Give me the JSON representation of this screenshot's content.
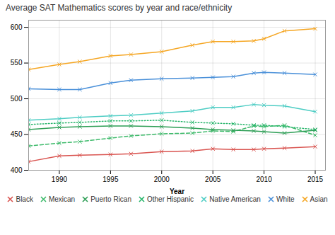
{
  "chart_data": {
    "type": "line",
    "title": "Average SAT Mathematics scores by year and race/ethnicity",
    "xlabel": "Year",
    "x": [
      1987,
      1990,
      1992,
      1995,
      1997,
      2000,
      2003,
      2005,
      2007,
      2009,
      2010,
      2012,
      2015
    ],
    "series": [
      {
        "name": "Black",
        "color": "#d9534f",
        "line_style": "solid",
        "values": [
          412,
          420,
          421,
          422,
          423,
          426,
          427,
          430,
          429,
          429,
          430,
          431,
          433
        ]
      },
      {
        "name": "Mexican",
        "color": "#3dba6a",
        "line_style": "dashed",
        "values": [
          434,
          438,
          440,
          445,
          448,
          451,
          452,
          455,
          454,
          462,
          461,
          463,
          449
        ]
      },
      {
        "name": "Puerto Rican",
        "color": "#2d9e55",
        "line_style": "solid",
        "values": [
          457,
          460,
          461,
          462,
          462,
          461,
          459,
          457,
          456,
          455,
          454,
          452,
          456
        ]
      },
      {
        "name": "Other Hispanic",
        "color": "#26b56a",
        "line_style": "dotted",
        "values": [
          464,
          466,
          467,
          469,
          469,
          470,
          467,
          466,
          465,
          463,
          463,
          461,
          457
        ]
      },
      {
        "name": "Native American",
        "color": "#4ecdc4",
        "line_style": "solid",
        "values": [
          470,
          472,
          474,
          476,
          477,
          480,
          483,
          488,
          488,
          492,
          491,
          490,
          482
        ]
      },
      {
        "name": "White",
        "color": "#4a90d9",
        "line_style": "solid",
        "values": [
          514,
          513,
          513,
          522,
          526,
          528,
          529,
          530,
          531,
          536,
          537,
          536,
          534
        ]
      },
      {
        "name": "Asian",
        "color": "#f5a623",
        "line_style": "solid",
        "values": [
          541,
          548,
          552,
          560,
          562,
          566,
          575,
          580,
          580,
          581,
          584,
          595,
          598
        ]
      }
    ],
    "marker": "x",
    "xlim": [
      1987,
      2016
    ],
    "xticks": [
      1990,
      1995,
      2000,
      2005,
      2010,
      2015
    ],
    "ylim": [
      400,
      610
    ],
    "yticks": [
      400,
      450,
      500,
      550,
      600
    ],
    "grid": true,
    "legend": "bottom"
  }
}
